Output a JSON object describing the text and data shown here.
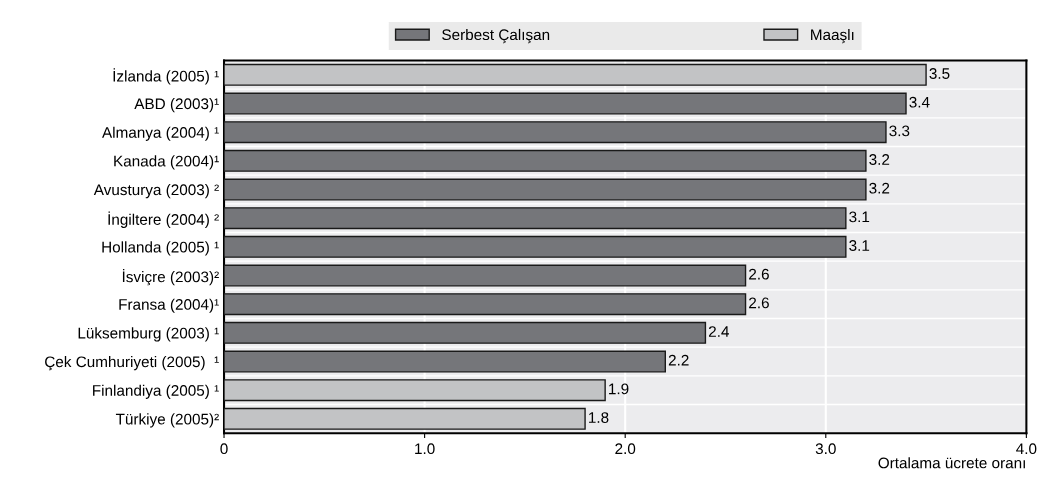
{
  "chart_data": {
    "type": "bar",
    "orientation": "horizontal",
    "categories": [
      "İzlanda (2005) ¹",
      "ABD (2003)¹",
      "Almanya (2004) ¹",
      "Kanada (2004)¹",
      "Avusturya (2003) ²",
      "İngiltere (2004) ²",
      "Hollanda (2005) ¹",
      "İsviçre (2003)²",
      "Fransa (2004)¹",
      "Lüksemburg (2003) ¹",
      "Çek Cumhuriyeti (2005)  ¹",
      "Finlandiya (2005) ¹",
      "Türkiye (2005)²"
    ],
    "series": [
      {
        "name": "Serbest Çalışan",
        "color": "#75767a",
        "values": [
          null,
          3.4,
          3.3,
          3.2,
          3.2,
          3.1,
          3.1,
          2.6,
          2.6,
          2.4,
          2.2,
          null,
          null
        ]
      },
      {
        "name": "Maaşlı",
        "color": "#c2c3c5",
        "values": [
          3.5,
          null,
          null,
          null,
          null,
          null,
          null,
          null,
          null,
          null,
          null,
          1.9,
          1.8
        ]
      }
    ],
    "data_labels": true,
    "xlabel": "Ortalama ücrete oranı",
    "xlim": [
      0,
      4
    ],
    "xticks": [
      0,
      {
        "value": 1,
        "label": "1.0"
      },
      {
        "value": 2,
        "label": "2.0"
      },
      {
        "value": 3,
        "label": "3.0"
      },
      {
        "value": 4,
        "label": "4.0"
      }
    ],
    "grid": "x",
    "legend": "top"
  }
}
